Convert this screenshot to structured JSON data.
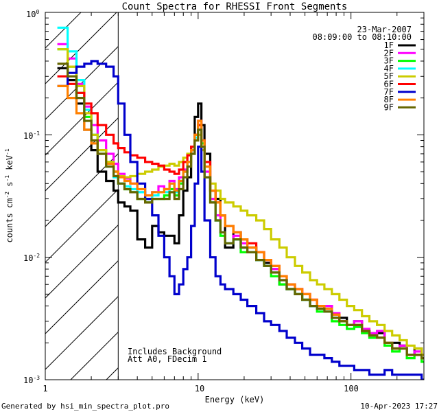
{
  "chart_data": {
    "type": "line",
    "title": "Count Spectra for RHESSI Front Segments",
    "xlabel": "Energy (keV)",
    "ylabel": "counts cm",
    "ylabel_parts": [
      "counts cm",
      "-2",
      " s",
      "-1",
      " keV",
      "-1"
    ],
    "xscale": "log",
    "yscale": "log",
    "xlim": [
      1,
      300
    ],
    "ylim": [
      0.001,
      1
    ],
    "x_ticks": [
      {
        "value": 1,
        "label": "1"
      },
      {
        "value": 10,
        "label": "10"
      },
      {
        "value": 100,
        "label": "100"
      }
    ],
    "y_ticks": [
      {
        "value": 0.001,
        "base": "10",
        "exp": "-3"
      },
      {
        "value": 0.01,
        "base": "10",
        "exp": "-2"
      },
      {
        "value": 0.1,
        "base": "10",
        "exp": "-1"
      },
      {
        "value": 1,
        "base": "10",
        "exp": "0"
      }
    ],
    "date": "23-Mar-2007",
    "time_range": "08:09:00 to 08:10:00",
    "annotation_lines": [
      "Includes Background",
      "Att A0, FDecim 1"
    ],
    "hatched_region_xmax": 3,
    "footer_left": "Generated by hsi_min_spectra_plot.pro",
    "footer_right": "10-Apr-2023 17:27",
    "energy_bins_keV": [
      1.2,
      1.4,
      1.6,
      1.8,
      2.0,
      2.2,
      2.5,
      2.8,
      3.0,
      3.3,
      3.6,
      4.0,
      4.5,
      5.0,
      5.5,
      6.0,
      6.5,
      7.0,
      7.5,
      8.0,
      8.5,
      9.0,
      9.5,
      10.0,
      10.5,
      11.0,
      12.0,
      13.0,
      14.0,
      15.0,
      17.0,
      19.0,
      21.0,
      24.0,
      27.0,
      30.0,
      34.0,
      38.0,
      43.0,
      48.0,
      54.0,
      60.0,
      67.0,
      75.0,
      84.0,
      94.0,
      105.0,
      118.0,
      132.0,
      148.0,
      166.0,
      186.0,
      208.0,
      232.0,
      260.0,
      290.0
    ],
    "series": [
      {
        "name": "1F",
        "color": "#000000",
        "values": [
          0.35,
          0.28,
          0.18,
          0.11,
          0.075,
          0.05,
          0.042,
          0.035,
          0.028,
          0.026,
          0.024,
          0.014,
          0.012,
          0.018,
          0.016,
          0.015,
          0.015,
          0.013,
          0.022,
          0.035,
          0.045,
          0.08,
          0.14,
          0.18,
          0.12,
          0.07,
          0.035,
          0.03,
          0.022,
          0.012,
          0.016,
          0.012,
          0.012,
          0.0095,
          0.009,
          0.008,
          0.006,
          0.0055,
          0.005,
          0.0045,
          0.004,
          0.0038,
          0.004,
          0.0032,
          0.0032,
          0.0028,
          0.003,
          0.0025,
          0.0024,
          0.0024,
          0.002,
          0.002,
          0.0019,
          0.0016,
          0.0018,
          0.0015
        ]
      },
      {
        "name": "2F",
        "color": "#ff00ff",
        "values": [
          0.55,
          0.42,
          0.26,
          0.17,
          0.12,
          0.09,
          0.07,
          0.058,
          0.048,
          0.044,
          0.04,
          0.034,
          0.03,
          0.034,
          0.038,
          0.036,
          0.042,
          0.036,
          0.045,
          0.052,
          0.06,
          0.075,
          0.1,
          0.13,
          0.09,
          0.05,
          0.03,
          0.022,
          0.016,
          0.013,
          0.015,
          0.013,
          0.011,
          0.011,
          0.0095,
          0.008,
          0.0065,
          0.006,
          0.0055,
          0.005,
          0.0045,
          0.004,
          0.004,
          0.0035,
          0.003,
          0.0028,
          0.003,
          0.0026,
          0.0024,
          0.0025,
          0.002,
          0.0018,
          0.0019,
          0.0016,
          0.0017,
          0.0016
        ]
      },
      {
        "name": "3F",
        "color": "#00ff00",
        "values": [
          0.5,
          0.36,
          0.22,
          0.14,
          0.1,
          0.075,
          0.06,
          0.05,
          0.04,
          0.036,
          0.034,
          0.03,
          0.028,
          0.03,
          0.03,
          0.032,
          0.036,
          0.032,
          0.04,
          0.05,
          0.06,
          0.075,
          0.1,
          0.12,
          0.085,
          0.045,
          0.028,
          0.02,
          0.015,
          0.013,
          0.014,
          0.011,
          0.011,
          0.0095,
          0.0085,
          0.007,
          0.006,
          0.0055,
          0.005,
          0.0045,
          0.004,
          0.0036,
          0.0036,
          0.003,
          0.0028,
          0.0026,
          0.0027,
          0.0024,
          0.0022,
          0.0022,
          0.0019,
          0.0017,
          0.0018,
          0.0015,
          0.0016,
          0.0014
        ]
      },
      {
        "name": "4F",
        "color": "#00ffff",
        "values": [
          0.75,
          0.48,
          0.28,
          0.16,
          0.1,
          0.07,
          0.055,
          0.045,
          0.04,
          0.038,
          0.036,
          0.034,
          0.03,
          0.032,
          0.034,
          0.034,
          0.04,
          0.034,
          0.042,
          0.05,
          0.06,
          0.07,
          0.095,
          0.11,
          0.08,
          0.045,
          0.028,
          0.02,
          0.016,
          0.013,
          0.014,
          0.012,
          0.011,
          0.0095,
          0.0085,
          0.0075,
          0.0065,
          0.0055,
          0.005,
          0.0045,
          0.004,
          0.0038,
          0.0036,
          0.0032,
          0.003,
          0.0028,
          0.0028,
          0.0025,
          0.0023,
          0.0022,
          0.002,
          0.0018,
          0.0018,
          0.0016,
          0.0016,
          0.0015
        ]
      },
      {
        "name": "5F",
        "color": "#cccc00",
        "values": [
          0.5,
          0.36,
          0.25,
          0.15,
          0.1,
          0.075,
          0.06,
          0.05,
          0.046,
          0.045,
          0.046,
          0.048,
          0.05,
          0.052,
          0.055,
          0.056,
          0.058,
          0.056,
          0.06,
          0.065,
          0.07,
          0.08,
          0.09,
          0.1,
          0.075,
          0.055,
          0.04,
          0.035,
          0.03,
          0.028,
          0.026,
          0.024,
          0.022,
          0.02,
          0.017,
          0.014,
          0.012,
          0.01,
          0.0085,
          0.0075,
          0.0065,
          0.006,
          0.0055,
          0.005,
          0.0045,
          0.004,
          0.0037,
          0.0033,
          0.003,
          0.0028,
          0.0025,
          0.0023,
          0.0021,
          0.0019,
          0.0018,
          0.0016
        ]
      },
      {
        "name": "6F",
        "color": "#ff0000",
        "values": [
          0.3,
          0.26,
          0.22,
          0.18,
          0.15,
          0.12,
          0.1,
          0.085,
          0.078,
          0.072,
          0.068,
          0.065,
          0.06,
          0.058,
          0.056,
          0.052,
          0.05,
          0.048,
          0.052,
          0.06,
          0.068,
          0.08,
          0.1,
          0.12,
          0.09,
          0.06,
          0.035,
          0.028,
          0.022,
          0.018,
          0.016,
          0.014,
          0.013,
          0.011,
          0.0095,
          0.0085,
          0.007,
          0.006,
          0.0055,
          0.005,
          0.0045,
          0.004,
          0.0038,
          0.0034,
          0.003,
          0.0028,
          0.0028,
          0.0025,
          0.0023,
          0.0022,
          0.002,
          0.0018,
          0.0018,
          0.0016,
          0.0016,
          0.0015
        ]
      },
      {
        "name": "7F",
        "color": "#0000cc",
        "values": [
          0.25,
          0.32,
          0.36,
          0.38,
          0.4,
          0.38,
          0.36,
          0.3,
          0.18,
          0.1,
          0.06,
          0.04,
          0.03,
          0.022,
          0.015,
          0.01,
          0.007,
          0.005,
          0.006,
          0.008,
          0.01,
          0.018,
          0.04,
          0.08,
          0.05,
          0.02,
          0.01,
          0.007,
          0.006,
          0.0055,
          0.005,
          0.0045,
          0.004,
          0.0035,
          0.003,
          0.0028,
          0.0025,
          0.0022,
          0.002,
          0.0018,
          0.0016,
          0.0016,
          0.0015,
          0.0014,
          0.0013,
          0.0013,
          0.0012,
          0.0012,
          0.0011,
          0.0011,
          0.0012,
          0.0011,
          0.0011,
          0.0011,
          0.0011,
          0.001
        ]
      },
      {
        "name": "8F",
        "color": "#ff8000",
        "values": [
          0.25,
          0.2,
          0.15,
          0.11,
          0.085,
          0.07,
          0.058,
          0.05,
          0.045,
          0.042,
          0.04,
          0.036,
          0.032,
          0.034,
          0.034,
          0.036,
          0.04,
          0.035,
          0.042,
          0.05,
          0.06,
          0.075,
          0.1,
          0.13,
          0.09,
          0.055,
          0.035,
          0.028,
          0.022,
          0.018,
          0.016,
          0.014,
          0.012,
          0.011,
          0.0095,
          0.0085,
          0.007,
          0.006,
          0.0055,
          0.005,
          0.0045,
          0.004,
          0.0038,
          0.0034,
          0.003,
          0.0028,
          0.0028,
          0.0025,
          0.0023,
          0.0022,
          0.002,
          0.0018,
          0.0018,
          0.0016,
          0.0016,
          0.0015
        ]
      },
      {
        "name": "9F",
        "color": "#666600",
        "values": [
          0.38,
          0.3,
          0.2,
          0.13,
          0.09,
          0.07,
          0.055,
          0.046,
          0.04,
          0.036,
          0.034,
          0.03,
          0.028,
          0.03,
          0.03,
          0.03,
          0.034,
          0.03,
          0.036,
          0.045,
          0.055,
          0.07,
          0.09,
          0.11,
          0.08,
          0.045,
          0.028,
          0.02,
          0.016,
          0.013,
          0.014,
          0.012,
          0.011,
          0.0095,
          0.0085,
          0.0075,
          0.0065,
          0.0055,
          0.005,
          0.0045,
          0.004,
          0.0038,
          0.0036,
          0.0032,
          0.003,
          0.0028,
          0.0028,
          0.0025,
          0.0023,
          0.0022,
          0.002,
          0.0018,
          0.0018,
          0.0016,
          0.0016,
          0.0015
        ]
      }
    ]
  }
}
